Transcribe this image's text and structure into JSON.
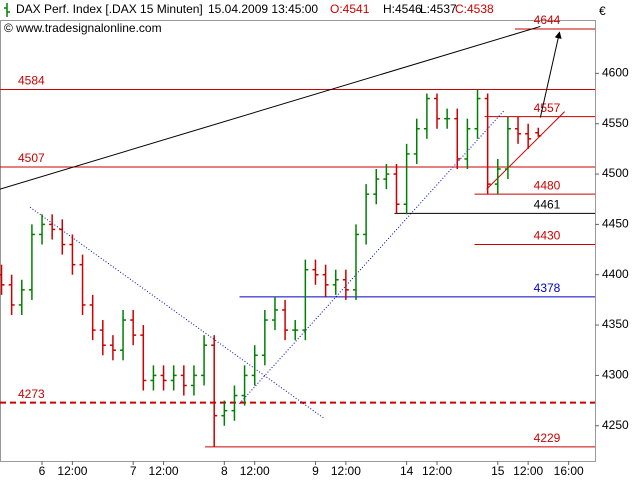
{
  "chart_data": {
    "type": "ohlc",
    "title": "DAX Perf. Index [.DAX  15 Minuten]",
    "datetime": "15.04.2009 13:45:00",
    "quote": [
      "O:4541",
      "H:4546",
      "L:4537",
      "C:4538"
    ],
    "copyright": "© www.tradesignalonline.com",
    "y_unit": "€",
    "up_color": "#008000",
    "down_color": "#cc0000",
    "x": [
      -4,
      -3,
      -2,
      -1,
      0,
      1,
      2,
      3,
      4,
      5,
      6,
      7,
      8,
      9,
      10,
      11,
      12,
      13,
      14,
      15,
      16,
      17,
      18,
      19,
      20,
      21,
      22,
      23,
      24,
      25,
      26,
      27,
      28,
      29,
      30,
      31,
      32,
      33,
      34,
      35,
      36,
      37,
      38,
      39,
      40,
      41,
      42,
      43,
      44,
      45,
      46,
      47,
      48,
      49
    ],
    "open": [
      4400,
      4390,
      4370,
      4385,
      4440,
      4450,
      4445,
      4430,
      4410,
      4370,
      4345,
      4330,
      4325,
      4355,
      4340,
      4295,
      4300,
      4295,
      4300,
      4290,
      4300,
      4330,
      4260,
      4265,
      4280,
      4300,
      4320,
      4355,
      4365,
      4345,
      4345,
      4405,
      4400,
      4390,
      4395,
      4385,
      4440,
      4480,
      4495,
      4500,
      4470,
      4520,
      4545,
      4575,
      4555,
      4555,
      4515,
      4545,
      4575,
      4490,
      4505,
      4545,
      4540,
      4541
    ],
    "high": [
      4410,
      4400,
      4395,
      4450,
      4460,
      4460,
      4455,
      4440,
      4420,
      4380,
      4355,
      4340,
      4365,
      4365,
      4350,
      4310,
      4310,
      4310,
      4310,
      4310,
      4340,
      4340,
      4275,
      4290,
      4310,
      4330,
      4365,
      4378,
      4375,
      4355,
      4415,
      4415,
      4410,
      4405,
      4405,
      4450,
      4490,
      4505,
      4510,
      4510,
      4530,
      4555,
      4580,
      4580,
      4565,
      4565,
      4555,
      4584,
      4580,
      4515,
      4557,
      4557,
      4550,
      4546
    ],
    "low": [
      4380,
      4360,
      4360,
      4375,
      4430,
      4435,
      4420,
      4400,
      4360,
      4335,
      4320,
      4315,
      4315,
      4330,
      4285,
      4285,
      4285,
      4285,
      4280,
      4280,
      4290,
      4229,
      4250,
      4255,
      4270,
      4290,
      4310,
      4345,
      4335,
      4335,
      4335,
      4390,
      4378,
      4380,
      4375,
      4375,
      4430,
      4470,
      4485,
      4461,
      4460,
      4510,
      4535,
      4545,
      4545,
      4505,
      4505,
      4535,
      4480,
      4480,
      4495,
      4530,
      4525,
      4537
    ],
    "close": [
      4390,
      4370,
      4385,
      4440,
      4450,
      4445,
      4430,
      4410,
      4370,
      4345,
      4330,
      4325,
      4355,
      4340,
      4295,
      4300,
      4295,
      4300,
      4290,
      4300,
      4330,
      4260,
      4265,
      4280,
      4300,
      4320,
      4355,
      4365,
      4345,
      4345,
      4405,
      4400,
      4390,
      4395,
      4385,
      4440,
      4480,
      4495,
      4500,
      4470,
      4520,
      4545,
      4575,
      4555,
      4555,
      4515,
      4545,
      4575,
      4490,
      4505,
      4545,
      4540,
      4535,
      4538
    ],
    "xlim": [
      -4.15,
      54.6
    ],
    "xticks": [
      {
        "value": 0,
        "label": "6"
      },
      {
        "value": 3,
        "label": "12:00"
      },
      {
        "value": 9,
        "label": "7"
      },
      {
        "value": 12,
        "label": "12:00"
      },
      {
        "value": 18,
        "label": "8"
      },
      {
        "value": 21,
        "label": "12:00"
      },
      {
        "value": 27,
        "label": "9"
      },
      {
        "value": 30,
        "label": "12:00"
      },
      {
        "value": 36,
        "label": "14"
      },
      {
        "value": 39,
        "label": "12:00"
      },
      {
        "value": 45,
        "label": "15"
      },
      {
        "value": 48,
        "label": "12:00"
      },
      {
        "value": 52,
        "label": "16:00"
      }
    ],
    "ylim": [
      4215,
      4653
    ],
    "yticks": [
      4250,
      4300,
      4350,
      4400,
      4450,
      4500,
      4550,
      4600
    ],
    "levels": [
      {
        "value": 4644,
        "color": "#cc0000",
        "from": 46.7,
        "label_side": "right"
      },
      {
        "value": 4584,
        "color": "#cc0000",
        "from": -4.15,
        "label_side": "left"
      },
      {
        "value": 4557,
        "color": "#cc0000",
        "from": 43.7,
        "label_side": "right"
      },
      {
        "value": 4507,
        "color": "#cc0000",
        "from": -4.15,
        "label_side": "left"
      },
      {
        "value": 4480,
        "color": "#cc0000",
        "from": 42.7,
        "label_side": "right"
      },
      {
        "value": 4461,
        "color": "#000000",
        "from": 34.8,
        "label_side": "right"
      },
      {
        "value": 4430,
        "color": "#cc0000",
        "from": 42.7,
        "label_side": "right"
      },
      {
        "value": 4378,
        "color": "#0000cc",
        "from": 19.5,
        "label_side": "right"
      },
      {
        "value": 4273,
        "color": "#cc0000",
        "from": -4.15,
        "label_side": "left",
        "dashed": true
      },
      {
        "value": 4229,
        "color": "#cc0000",
        "from": 16.1,
        "label_side": "right"
      }
    ],
    "trendlines": [
      {
        "x": [
          -4.15,
          49.2
        ],
        "y": [
          4485,
          4646.6
        ],
        "color": "#000000",
        "style": "solid"
      },
      {
        "x": [
          -1.18,
          27.9
        ],
        "y": [
          4467,
          4257
        ],
        "color": "#0000cc",
        "style": "dotted"
      },
      {
        "x": [
          19.5,
          45.7
        ],
        "y": [
          4272,
          4564
        ],
        "color": "#0000cc",
        "style": "dotted"
      },
      {
        "x": [
          43.9,
          51.6
        ],
        "y": [
          4485,
          4562
        ],
        "color": "#cc0000",
        "style": "solid"
      },
      {
        "x": [
          49.2,
          51.1
        ],
        "y": [
          4556,
          4641
        ],
        "color": "#000000",
        "style": "arrow"
      }
    ]
  }
}
